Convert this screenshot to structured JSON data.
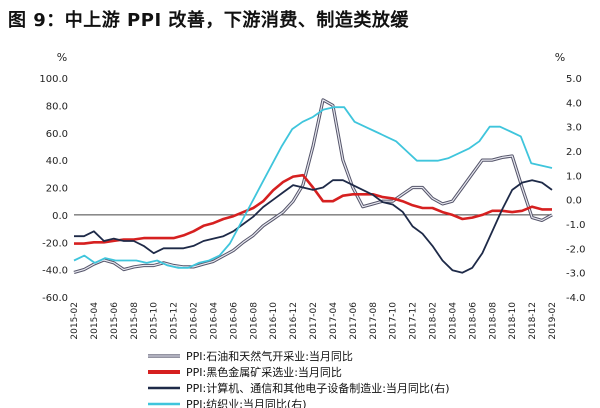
{
  "figure": {
    "title": "图 9：中上游 PPI 改善，下游消费、制造类放缓"
  },
  "chart_data": {
    "type": "line",
    "left_axis": {
      "unit_label": "%",
      "ylim": [
        -60,
        100
      ],
      "ticks": [
        "100.0",
        "80.0",
        "60.0",
        "40.0",
        "20.0",
        "0.0",
        "-20.0",
        "-40.0",
        "-60.0"
      ]
    },
    "right_axis": {
      "unit_label": "%",
      "ylim": [
        -4,
        5
      ],
      "ticks": [
        "5.0",
        "4.0",
        "3.0",
        "2.0",
        "1.0",
        "0.0",
        "-1.0",
        "-2.0",
        "-3.0",
        "-4.0"
      ]
    },
    "x_ticks": [
      "2015-02",
      "2015-04",
      "2015-06",
      "2015-08",
      "2015-10",
      "2015-12",
      "2016-02",
      "2016-04",
      "2016-06",
      "2016-08",
      "2016-10",
      "2016-12",
      "2017-02",
      "2017-04",
      "2017-06",
      "2017-08",
      "2017-10",
      "2017-12",
      "2018-02",
      "2018-04",
      "2018-06",
      "2018-08",
      "2018-10",
      "2018-12",
      "2019-02"
    ],
    "grid": false,
    "legend_position": "bottom",
    "series": [
      {
        "name": "PPI:石油和天然气开采业:当月同比",
        "axis": "left",
        "color": "#9a9aae",
        "style": "double",
        "values": [
          -42,
          -40,
          -36,
          -33,
          -35,
          -40,
          -38,
          -37,
          -37,
          -35,
          -37,
          -38,
          -38,
          -36,
          -34,
          -30,
          -26,
          -20,
          -15,
          -8,
          -3,
          2,
          10,
          22,
          50,
          84,
          80,
          40,
          20,
          6,
          8,
          10,
          10,
          15,
          20,
          20,
          12,
          8,
          10,
          20,
          30,
          40,
          40,
          42,
          43,
          20,
          -2,
          -4,
          0
        ]
      },
      {
        "name": "PPI:黑色金属矿采选业:当月同比",
        "axis": "left",
        "color": "#d62020",
        "style": "solid",
        "values": [
          -21,
          -21,
          -20,
          -20,
          -19,
          -18,
          -18,
          -17,
          -17,
          -17,
          -17,
          -15,
          -12,
          -8,
          -6,
          -3,
          -1,
          2,
          5,
          10,
          18,
          24,
          28,
          29,
          20,
          10,
          10,
          14,
          15,
          15,
          15,
          13,
          12,
          10,
          7,
          5,
          5,
          2,
          0,
          -3,
          -2,
          0,
          3,
          3,
          2,
          3,
          6,
          4,
          4
        ]
      },
      {
        "name": "PPI:计算机、通信和其他电子设备制造业:当月同比(右)",
        "axis": "right",
        "color": "#1e2a48",
        "style": "solid",
        "values": [
          -1.5,
          -1.5,
          -1.3,
          -1.7,
          -1.6,
          -1.7,
          -1.7,
          -1.9,
          -2.2,
          -2.0,
          -2.0,
          -2.0,
          -1.9,
          -1.7,
          -1.6,
          -1.5,
          -1.3,
          -1.0,
          -0.7,
          -0.3,
          0.0,
          0.3,
          0.6,
          0.5,
          0.4,
          0.5,
          0.8,
          0.8,
          0.6,
          0.4,
          0.2,
          -0.1,
          -0.2,
          -0.5,
          -1.1,
          -1.4,
          -1.9,
          -2.5,
          -2.9,
          -3.0,
          -2.8,
          -2.2,
          -1.3,
          -0.4,
          0.4,
          0.7,
          0.8,
          0.7,
          0.4
        ]
      },
      {
        "name": "PPI:纺织业:当月同比(右)",
        "axis": "right",
        "color": "#3fc5dc",
        "style": "solid",
        "values": [
          -2.5,
          -2.3,
          -2.6,
          -2.4,
          -2.5,
          -2.5,
          -2.5,
          -2.6,
          -2.5,
          -2.7,
          -2.8,
          -2.8,
          -2.6,
          -2.5,
          -2.3,
          -1.8,
          -1.0,
          -0.2,
          0.6,
          1.4,
          2.2,
          2.9,
          3.2,
          3.4,
          3.7,
          3.8,
          3.8,
          3.2,
          3.0,
          2.8,
          2.6,
          2.4,
          2.0,
          1.6,
          1.6,
          1.6,
          1.7,
          1.9,
          2.1,
          2.4,
          3.0,
          3.0,
          2.8,
          2.6,
          1.5,
          1.4,
          1.3
        ]
      }
    ]
  }
}
